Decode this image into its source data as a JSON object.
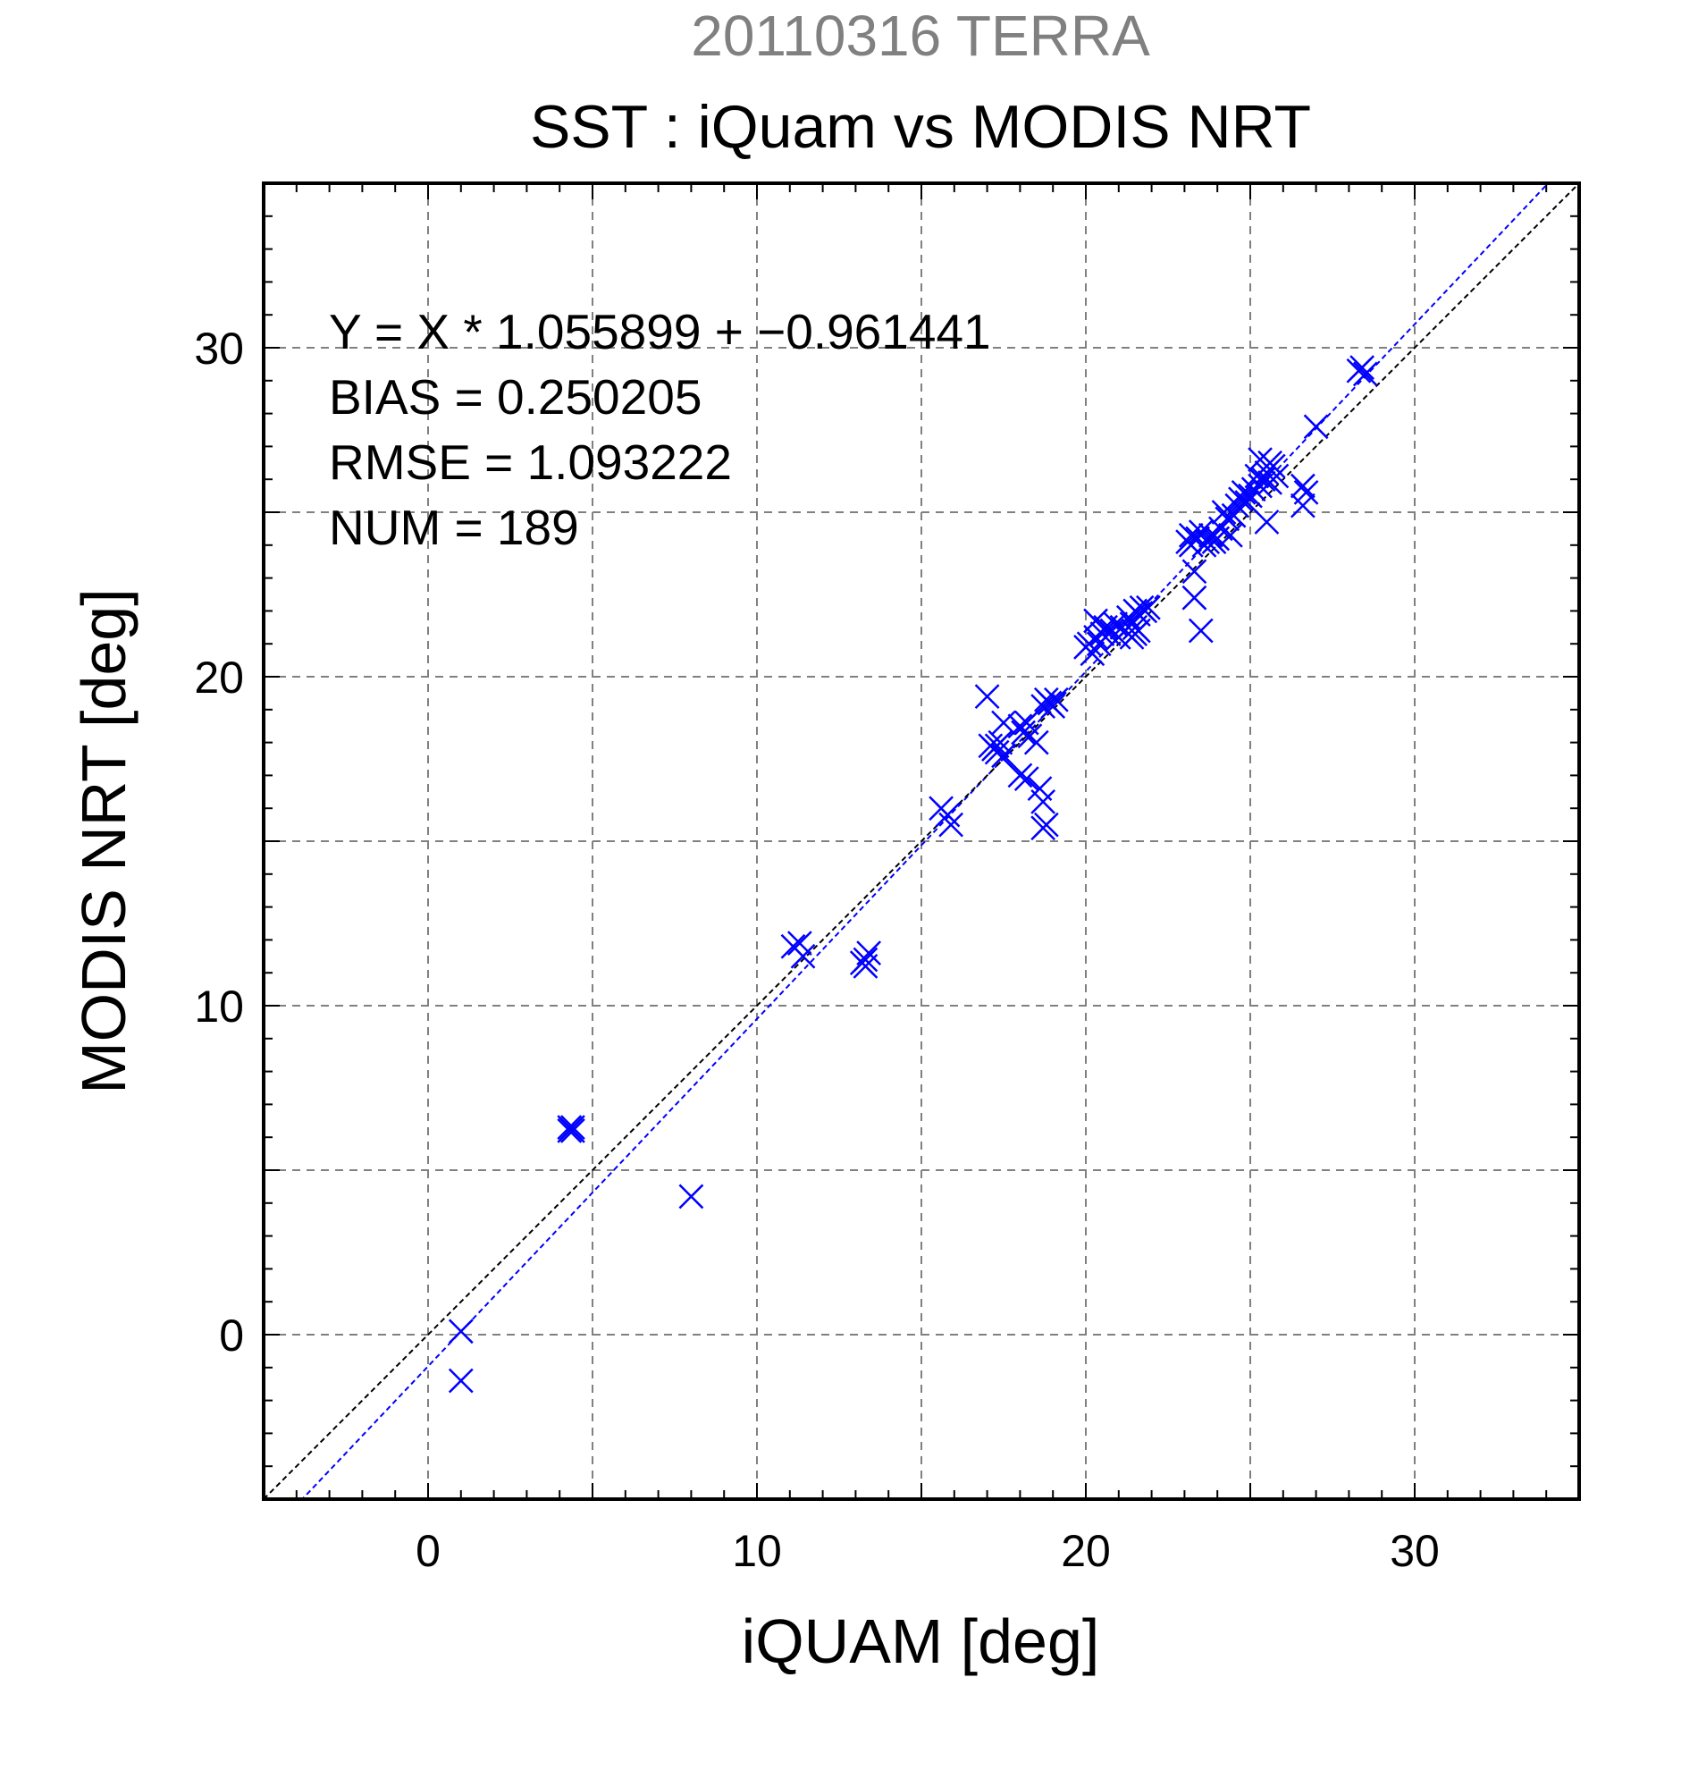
{
  "chart_data": {
    "type": "scatter",
    "title": "20110316 TERRA",
    "subtitle": "SST : iQuam vs MODIS NRT",
    "xlabel": "iQUAM [deg]",
    "ylabel": "MODIS NRT [deg]",
    "xlim": [
      -5,
      35
    ],
    "ylim": [
      -5,
      35
    ],
    "xticks": [
      0,
      10,
      20,
      30
    ],
    "yticks": [
      0,
      10,
      20,
      30
    ],
    "grid": true,
    "annotations": [
      "Y = X * 1.055899 + −0.961441",
      "BIAS = 0.250205",
      "RMSE = 1.093222",
      "NUM = 189"
    ],
    "colors": {
      "title": "#808080",
      "points": "#0000ff",
      "fit_line": "#0000ff",
      "identity_line": "#000000",
      "grid": "#808080"
    },
    "lines": [
      {
        "kind": "fit",
        "slope": 1.055899,
        "intercept": -0.961441
      },
      {
        "kind": "identity",
        "slope": 1.0,
        "intercept": 0.0
      }
    ],
    "series": [
      {
        "marker": "x",
        "points": [
          [
            1.0,
            0.1
          ],
          [
            1.0,
            -1.4
          ],
          [
            4.3,
            6.2
          ],
          [
            4.4,
            6.3
          ],
          [
            4.4,
            6.2
          ],
          [
            4.3,
            6.3
          ],
          [
            8.0,
            4.2
          ],
          [
            11.1,
            11.8
          ],
          [
            11.3,
            11.9
          ],
          [
            11.4,
            11.5
          ],
          [
            13.2,
            11.3
          ],
          [
            13.3,
            11.4
          ],
          [
            13.4,
            11.6
          ],
          [
            13.3,
            11.2
          ],
          [
            15.6,
            16.0
          ],
          [
            15.9,
            15.5
          ],
          [
            15.8,
            15.8
          ],
          [
            17.0,
            19.4
          ],
          [
            17.1,
            17.9
          ],
          [
            17.2,
            17.8
          ],
          [
            17.3,
            17.7
          ],
          [
            17.4,
            18.0
          ],
          [
            17.5,
            18.6
          ],
          [
            17.3,
            17.9
          ],
          [
            17.5,
            17.6
          ],
          [
            18.0,
            18.5
          ],
          [
            18.1,
            18.3
          ],
          [
            18.2,
            18.6
          ],
          [
            18.3,
            18.2
          ],
          [
            18.2,
            16.9
          ],
          [
            18.0,
            17.0
          ],
          [
            18.5,
            18.0
          ],
          [
            18.6,
            16.6
          ],
          [
            18.7,
            16.2
          ],
          [
            18.8,
            15.5
          ],
          [
            18.7,
            15.4
          ],
          [
            18.7,
            19.1
          ],
          [
            18.8,
            19.3
          ],
          [
            18.9,
            19.2
          ],
          [
            19.0,
            19.1
          ],
          [
            19.1,
            19.3
          ],
          [
            20.0,
            20.9
          ],
          [
            20.1,
            21.0
          ],
          [
            20.2,
            20.7
          ],
          [
            20.3,
            21.2
          ],
          [
            20.3,
            21.7
          ],
          [
            20.4,
            21.0
          ],
          [
            20.5,
            21.3
          ],
          [
            20.6,
            21.5
          ],
          [
            20.7,
            21.3
          ],
          [
            20.8,
            21.4
          ],
          [
            20.9,
            21.6
          ],
          [
            21.0,
            21.2
          ],
          [
            21.1,
            21.5
          ],
          [
            21.2,
            21.4
          ],
          [
            21.3,
            21.8
          ],
          [
            21.4,
            21.6
          ],
          [
            21.5,
            21.5
          ],
          [
            21.6,
            21.9
          ],
          [
            21.5,
            22.0
          ],
          [
            21.7,
            22.1
          ],
          [
            21.8,
            22.0
          ],
          [
            21.5,
            21.3
          ],
          [
            21.4,
            21.2
          ],
          [
            21.6,
            21.4
          ],
          [
            21.9,
            22.1
          ],
          [
            23.1,
            24.1
          ],
          [
            23.2,
            24.0
          ],
          [
            23.2,
            24.3
          ],
          [
            23.3,
            23.2
          ],
          [
            23.3,
            22.4
          ],
          [
            23.4,
            24.2
          ],
          [
            23.5,
            24.4
          ],
          [
            23.5,
            21.4
          ],
          [
            23.6,
            24.0
          ],
          [
            23.7,
            24.1
          ],
          [
            23.8,
            24.3
          ],
          [
            23.9,
            24.1
          ],
          [
            24.0,
            24.2
          ],
          [
            24.1,
            24.5
          ],
          [
            24.2,
            25.0
          ],
          [
            24.3,
            24.8
          ],
          [
            24.4,
            24.3
          ],
          [
            24.5,
            24.9
          ],
          [
            24.6,
            25.2
          ],
          [
            24.7,
            25.4
          ],
          [
            24.8,
            25.6
          ],
          [
            24.9,
            25.3
          ],
          [
            25.0,
            25.5
          ],
          [
            25.1,
            25.7
          ],
          [
            25.2,
            26.1
          ],
          [
            25.3,
            26.6
          ],
          [
            25.4,
            26.0
          ],
          [
            25.5,
            26.2
          ],
          [
            25.6,
            25.9
          ],
          [
            25.7,
            26.4
          ],
          [
            25.8,
            26.1
          ],
          [
            25.5,
            24.7
          ],
          [
            25.6,
            26.5
          ],
          [
            25.3,
            25.8
          ],
          [
            26.6,
            25.8
          ],
          [
            26.6,
            25.2
          ],
          [
            26.7,
            25.6
          ],
          [
            27.0,
            27.6
          ],
          [
            28.3,
            29.3
          ],
          [
            28.4,
            29.4
          ],
          [
            28.5,
            29.2
          ]
        ]
      }
    ]
  }
}
